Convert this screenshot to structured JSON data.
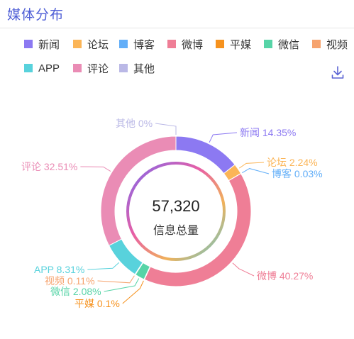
{
  "header": {
    "title": "媒体分布"
  },
  "toolbar": {
    "download_icon": "download-icon"
  },
  "colors": {
    "title": "#4f5fd6",
    "center_ring": [
      "#7b68ee",
      "#e85fa5",
      "#f0b15a",
      "#5bc8d6"
    ]
  },
  "chart_data": {
    "type": "pie",
    "donut": true,
    "center_value": "57,320",
    "center_label": "信息总量",
    "legend_position": "top",
    "slices": [
      {
        "name": "新闻",
        "label": "新闻 14.35%",
        "value": 14.35,
        "color": "#8c79f2"
      },
      {
        "name": "论坛",
        "label": "论坛 2.24%",
        "value": 2.24,
        "color": "#fbb557"
      },
      {
        "name": "博客",
        "label": "博客 0.03%",
        "value": 0.03,
        "color": "#62aef8"
      },
      {
        "name": "微博",
        "label": "微博 40.27%",
        "value": 40.27,
        "color": "#ef7e96"
      },
      {
        "name": "平媒",
        "label": "平媒 0.1%",
        "value": 0.1,
        "color": "#f6921e"
      },
      {
        "name": "微信",
        "label": "微信 2.08%",
        "value": 2.08,
        "color": "#57d4a7"
      },
      {
        "name": "视频",
        "label": "视频 0.11%",
        "value": 0.11,
        "color": "#f6a36e"
      },
      {
        "name": "APP",
        "label": "APP 8.31%",
        "value": 8.31,
        "color": "#58d2dc"
      },
      {
        "name": "评论",
        "label": "评论 32.51%",
        "value": 32.51,
        "color": "#ea8cb5"
      },
      {
        "name": "其他",
        "label": "其他 0%",
        "value": 0,
        "color": "#bab8e6"
      }
    ]
  }
}
